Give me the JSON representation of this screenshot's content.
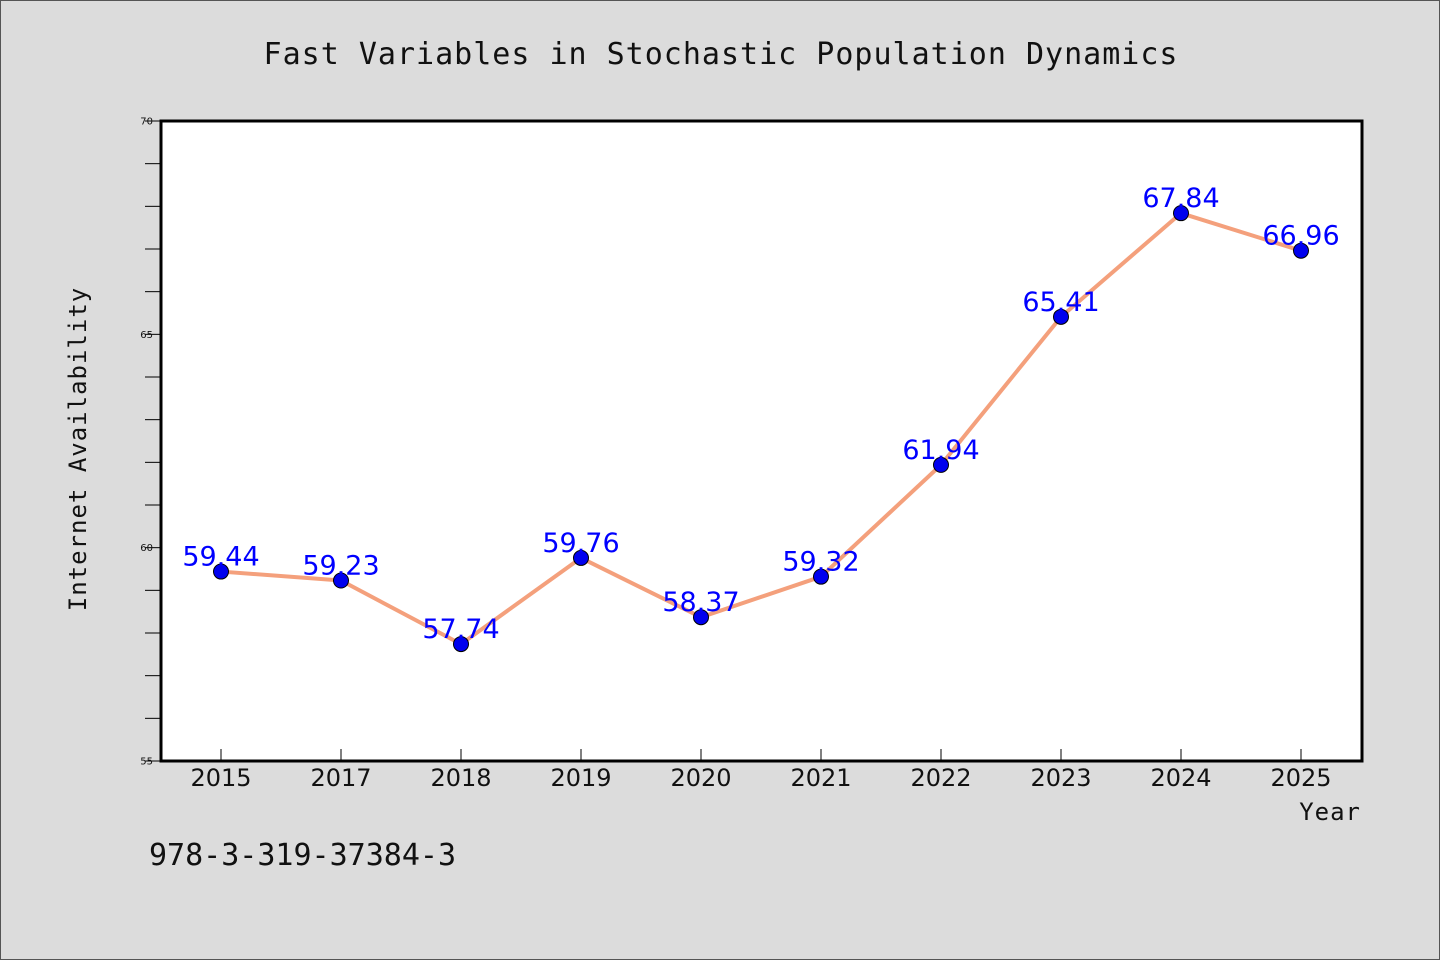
{
  "chart_data": {
    "type": "line",
    "title": "Fast Variables in Stochastic Population Dynamics",
    "xlabel": "Year",
    "ylabel": "Internet Availability",
    "categories": [
      "2015",
      "2017",
      "2018",
      "2019",
      "2020",
      "2021",
      "2022",
      "2023",
      "2024",
      "2025"
    ],
    "series": [
      {
        "values": [
          59.44,
          59.23,
          57.74,
          59.76,
          58.37,
          59.32,
          61.94,
          65.41,
          67.84,
          66.96
        ],
        "labels": [
          "59.44",
          "59.23",
          "57.74",
          "59.76",
          "58.37",
          "59.32",
          "61.94",
          "65.41",
          "67.84",
          "66.96"
        ]
      }
    ],
    "ylim": [
      55,
      70
    ],
    "yticks": [
      "55",
      "60",
      "65",
      "70"
    ],
    "grid": false,
    "colors": {
      "line": "#f4a07c",
      "marker": "#0000ee",
      "data_label": "#0000ff"
    }
  },
  "footer": {
    "isbn": "978-3-319-37384-3"
  }
}
